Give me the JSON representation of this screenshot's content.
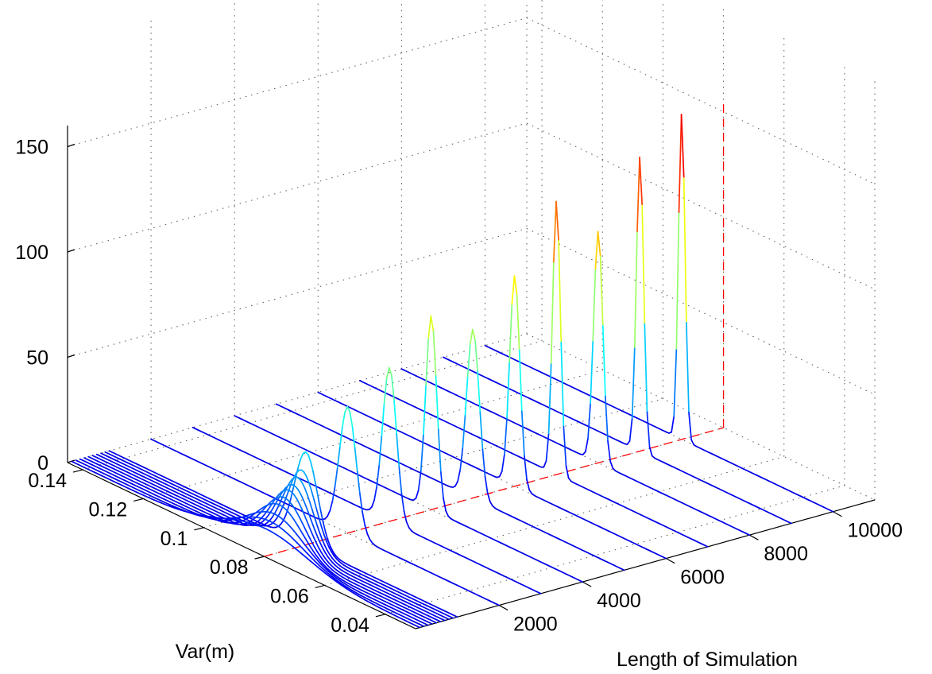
{
  "chart_data": {
    "type": "line",
    "subtype": "waterfall-3d",
    "xlabel": "Var(m)",
    "ylabel": "Length of Simulation",
    "zlabel": "",
    "x_ticks": [
      "0.14",
      "0.12",
      "0.1",
      "0.08",
      "0.06",
      "0.04"
    ],
    "y_ticks": [
      "2000",
      "4000",
      "6000",
      "8000",
      "10000"
    ],
    "z_ticks": [
      "0",
      "50",
      "100",
      "150"
    ],
    "xlim": [
      0.03,
      0.145
    ],
    "ylim": [
      0,
      11000
    ],
    "zlim": [
      0,
      160
    ],
    "grid": true,
    "colormap": "jet",
    "series_lengths": [
      100,
      200,
      300,
      400,
      500,
      600,
      700,
      800,
      900,
      1000,
      2000,
      3000,
      4000,
      5000,
      6000,
      7000,
      8000,
      9000,
      10000
    ],
    "series_peak_heights": [
      12,
      15,
      18,
      22,
      25,
      28,
      30,
      33,
      36,
      44,
      60,
      73,
      92,
      80,
      100,
      130,
      110,
      140,
      155
    ],
    "series_peak_var": [
      0.081,
      0.0808,
      0.0806,
      0.0804,
      0.0802,
      0.08,
      0.08,
      0.08,
      0.08,
      0.08,
      0.08,
      0.08,
      0.08,
      0.08,
      0.08,
      0.08,
      0.08,
      0.08,
      0.08
    ],
    "reference_line": {
      "var": 0.08,
      "color": "#ff0000",
      "style": "dashed"
    }
  }
}
